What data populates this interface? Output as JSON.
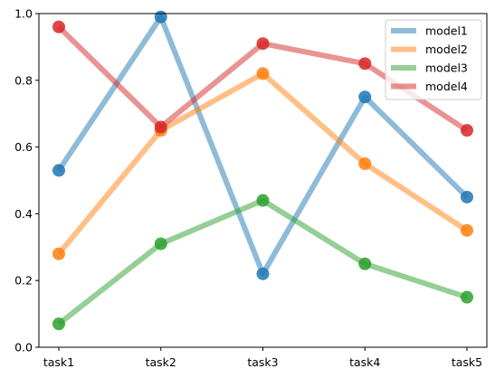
{
  "chart_data": {
    "type": "line",
    "title": "",
    "xlabel": "",
    "ylabel": "",
    "categories": [
      "task1",
      "task2",
      "task3",
      "task4",
      "task5"
    ],
    "ylim": [
      0,
      1.0
    ],
    "yticks": [
      "0.0",
      "0.2",
      "0.4",
      "0.6",
      "0.8",
      "1.0"
    ],
    "grid": false,
    "legend_position": "top-right",
    "series": [
      {
        "name": "model1",
        "color": "#1f77b4",
        "values": [
          0.53,
          0.99,
          0.22,
          0.75,
          0.45
        ]
      },
      {
        "name": "model2",
        "color": "#ff7f0e",
        "values": [
          0.28,
          0.65,
          0.82,
          0.55,
          0.35
        ]
      },
      {
        "name": "model3",
        "color": "#2ca02c",
        "values": [
          0.07,
          0.31,
          0.44,
          0.25,
          0.15
        ]
      },
      {
        "name": "model4",
        "color": "#d62728",
        "values": [
          0.96,
          0.66,
          0.91,
          0.85,
          0.65
        ]
      }
    ]
  }
}
